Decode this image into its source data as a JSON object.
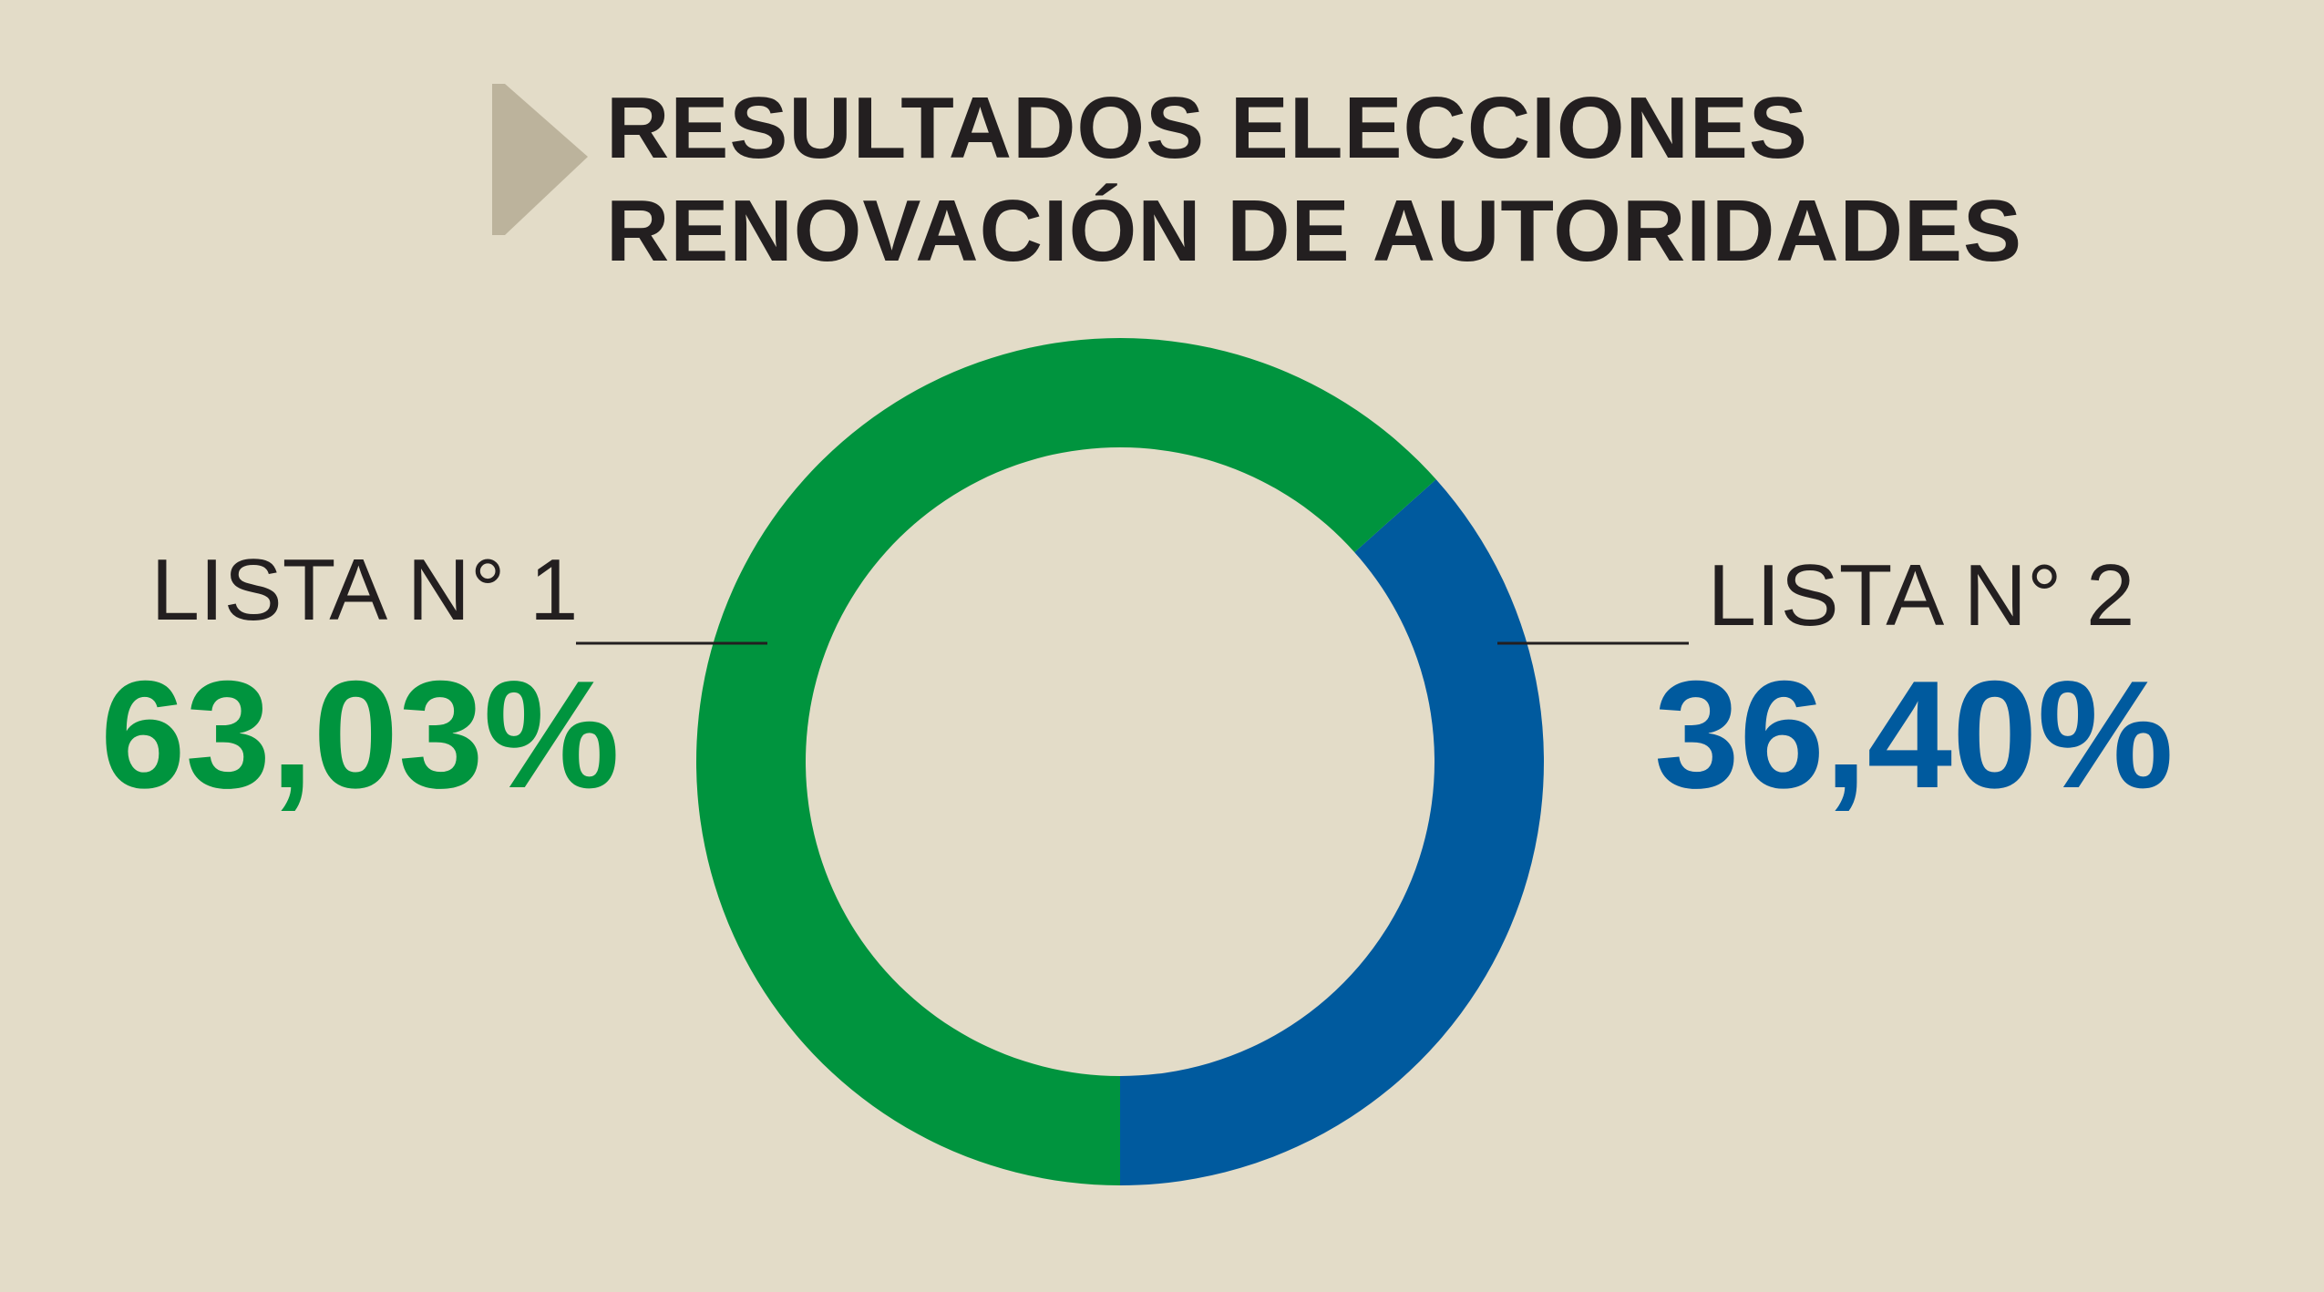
{
  "title": {
    "line1": "RESULTADOS ELECCIONES",
    "line2": "RENOVACIÓN DE AUTORIDADES"
  },
  "chart_data": {
    "type": "pie",
    "variant": "donut",
    "title": "RESULTADOS ELECCIONES RENOVACIÓN DE AUTORIDADES",
    "slices": [
      {
        "name": "LISTA N° 1",
        "value": 63.03,
        "label": "63,03%",
        "color": "#00943e"
      },
      {
        "name": "LISTA N° 2",
        "value": 36.4,
        "label": "36,40%",
        "color": "#005a9e"
      }
    ],
    "legend": "none"
  },
  "colors": {
    "background": "#e3dcc8",
    "marker": "#bcb39c",
    "text": "#231f20"
  }
}
